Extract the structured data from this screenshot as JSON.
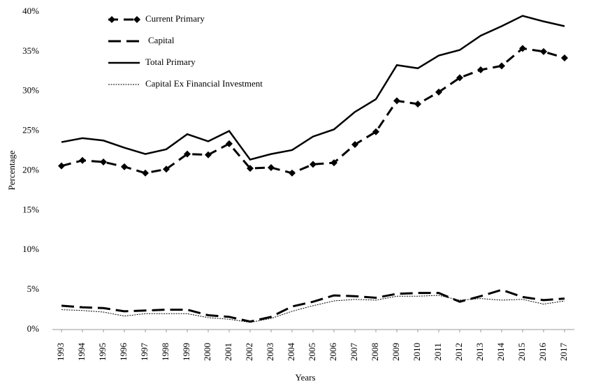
{
  "chart_data": {
    "type": "line",
    "x_label": "Years",
    "y_label": "Percentage",
    "categories": [
      "1993",
      "1994",
      "1995",
      "1996",
      "1997",
      "1998",
      "1999",
      "2000",
      "2001",
      "2002",
      "2003",
      "2004",
      "2005",
      "2006",
      "2007",
      "2008",
      "2009",
      "2010",
      "2011",
      "2012",
      "2013",
      "2014",
      "2015",
      "2016",
      "2017"
    ],
    "series": [
      {
        "name": "Current Primary",
        "color": "#000000",
        "values": [
          20.6,
          21.3,
          21.1,
          20.5,
          19.7,
          20.2,
          22.1,
          22.0,
          23.4,
          20.3,
          20.4,
          19.7,
          20.8,
          21.0,
          23.3,
          24.9,
          28.8,
          28.4,
          29.9,
          31.7,
          32.7,
          33.2,
          35.4,
          35.0,
          34.2
        ]
      },
      {
        "name": "Capital",
        "color": "#000000",
        "values": [
          3.0,
          2.8,
          2.7,
          2.3,
          2.4,
          2.5,
          2.5,
          1.8,
          1.6,
          1.0,
          1.6,
          2.9,
          3.5,
          4.3,
          4.2,
          4.0,
          4.5,
          4.6,
          4.6,
          3.5,
          4.2,
          5.0,
          4.1,
          3.7,
          3.9
        ]
      },
      {
        "name": "Total Primary",
        "color": "#000000",
        "values": [
          23.6,
          24.1,
          23.8,
          22.9,
          22.1,
          22.7,
          24.6,
          23.7,
          25.0,
          21.4,
          22.1,
          22.6,
          24.3,
          25.2,
          27.4,
          29.0,
          33.3,
          32.9,
          34.5,
          35.2,
          37.0,
          38.2,
          39.5,
          38.8,
          38.2
        ]
      },
      {
        "name": "Capital Ex Financial Investment",
        "color": "#000000",
        "values": [
          2.5,
          2.4,
          2.2,
          1.7,
          2.0,
          2.0,
          2.0,
          1.5,
          1.3,
          0.9,
          1.4,
          2.3,
          3.0,
          3.6,
          3.8,
          3.7,
          4.2,
          4.2,
          4.3,
          3.7,
          3.9,
          3.7,
          3.8,
          3.2,
          3.6
        ]
      }
    ],
    "ylim": [
      0,
      40
    ],
    "yticks": [
      {
        "value": 0,
        "label": "0%"
      },
      {
        "value": 5,
        "label": "5%"
      },
      {
        "value": 10,
        "label": "10%"
      },
      {
        "value": 15,
        "label": "15%"
      },
      {
        "value": 20,
        "label": "20%"
      },
      {
        "value": 25,
        "label": "25%"
      },
      {
        "value": 30,
        "label": "30%"
      },
      {
        "value": 35,
        "label": "35%"
      },
      {
        "value": 40,
        "label": "40%"
      }
    ],
    "legend": "top-left",
    "grid": false
  }
}
